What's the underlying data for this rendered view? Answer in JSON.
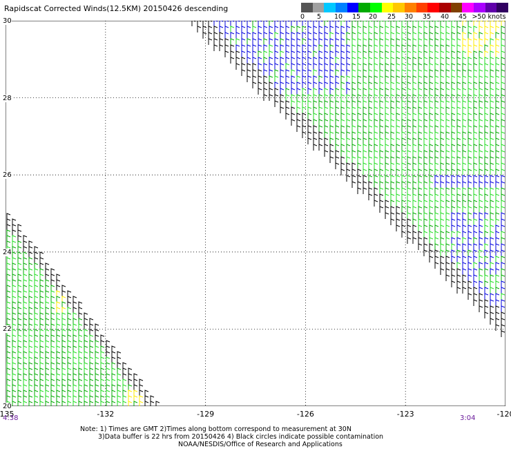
{
  "title": "Rapidscat Corrected Winds(12.5KM) 20150426 descending",
  "colorbar": {
    "colors": [
      "#555555",
      "#a0a0a0",
      "#00c8ff",
      "#0080ff",
      "#0000ff",
      "#00aa00",
      "#00ff00",
      "#ffff00",
      "#ffc800",
      "#ff8000",
      "#ff4000",
      "#ff0000",
      "#aa0000",
      "#804000",
      "#ff00ff",
      "#aa00ff",
      "#6000aa",
      "#300060"
    ],
    "tick_labels": [
      "0",
      "5",
      "10",
      "15",
      "20",
      "25",
      "30",
      "35",
      "40",
      "45",
      ">50 knots"
    ]
  },
  "map": {
    "lon_labels": [
      "-135",
      "-132",
      "-129",
      "-126",
      "-123",
      "-120"
    ],
    "lat_labels": [
      "30",
      "28",
      "26",
      "24",
      "22",
      "20"
    ],
    "lon_range": [
      -135,
      -120
    ],
    "lat_range": [
      20,
      30
    ],
    "grid": "dotted",
    "wind_colors": {
      "calm": "#000000",
      "low": "#0000dd",
      "moderate": "#00aa00",
      "fresh": "#22dd22",
      "strong": "#ffee00"
    }
  },
  "times": {
    "left": "4:38",
    "right": "3:04"
  },
  "notes": {
    "line1": "Note: 1) Times are GMT 2)Times along bottom correspond to measurement at 30N",
    "line2": "3)Data buffer is 22 hrs from 20150426 4) Black circles indicate possible contamination",
    "line3": "NOAA/NESDIS/Office of Research and Applications"
  }
}
